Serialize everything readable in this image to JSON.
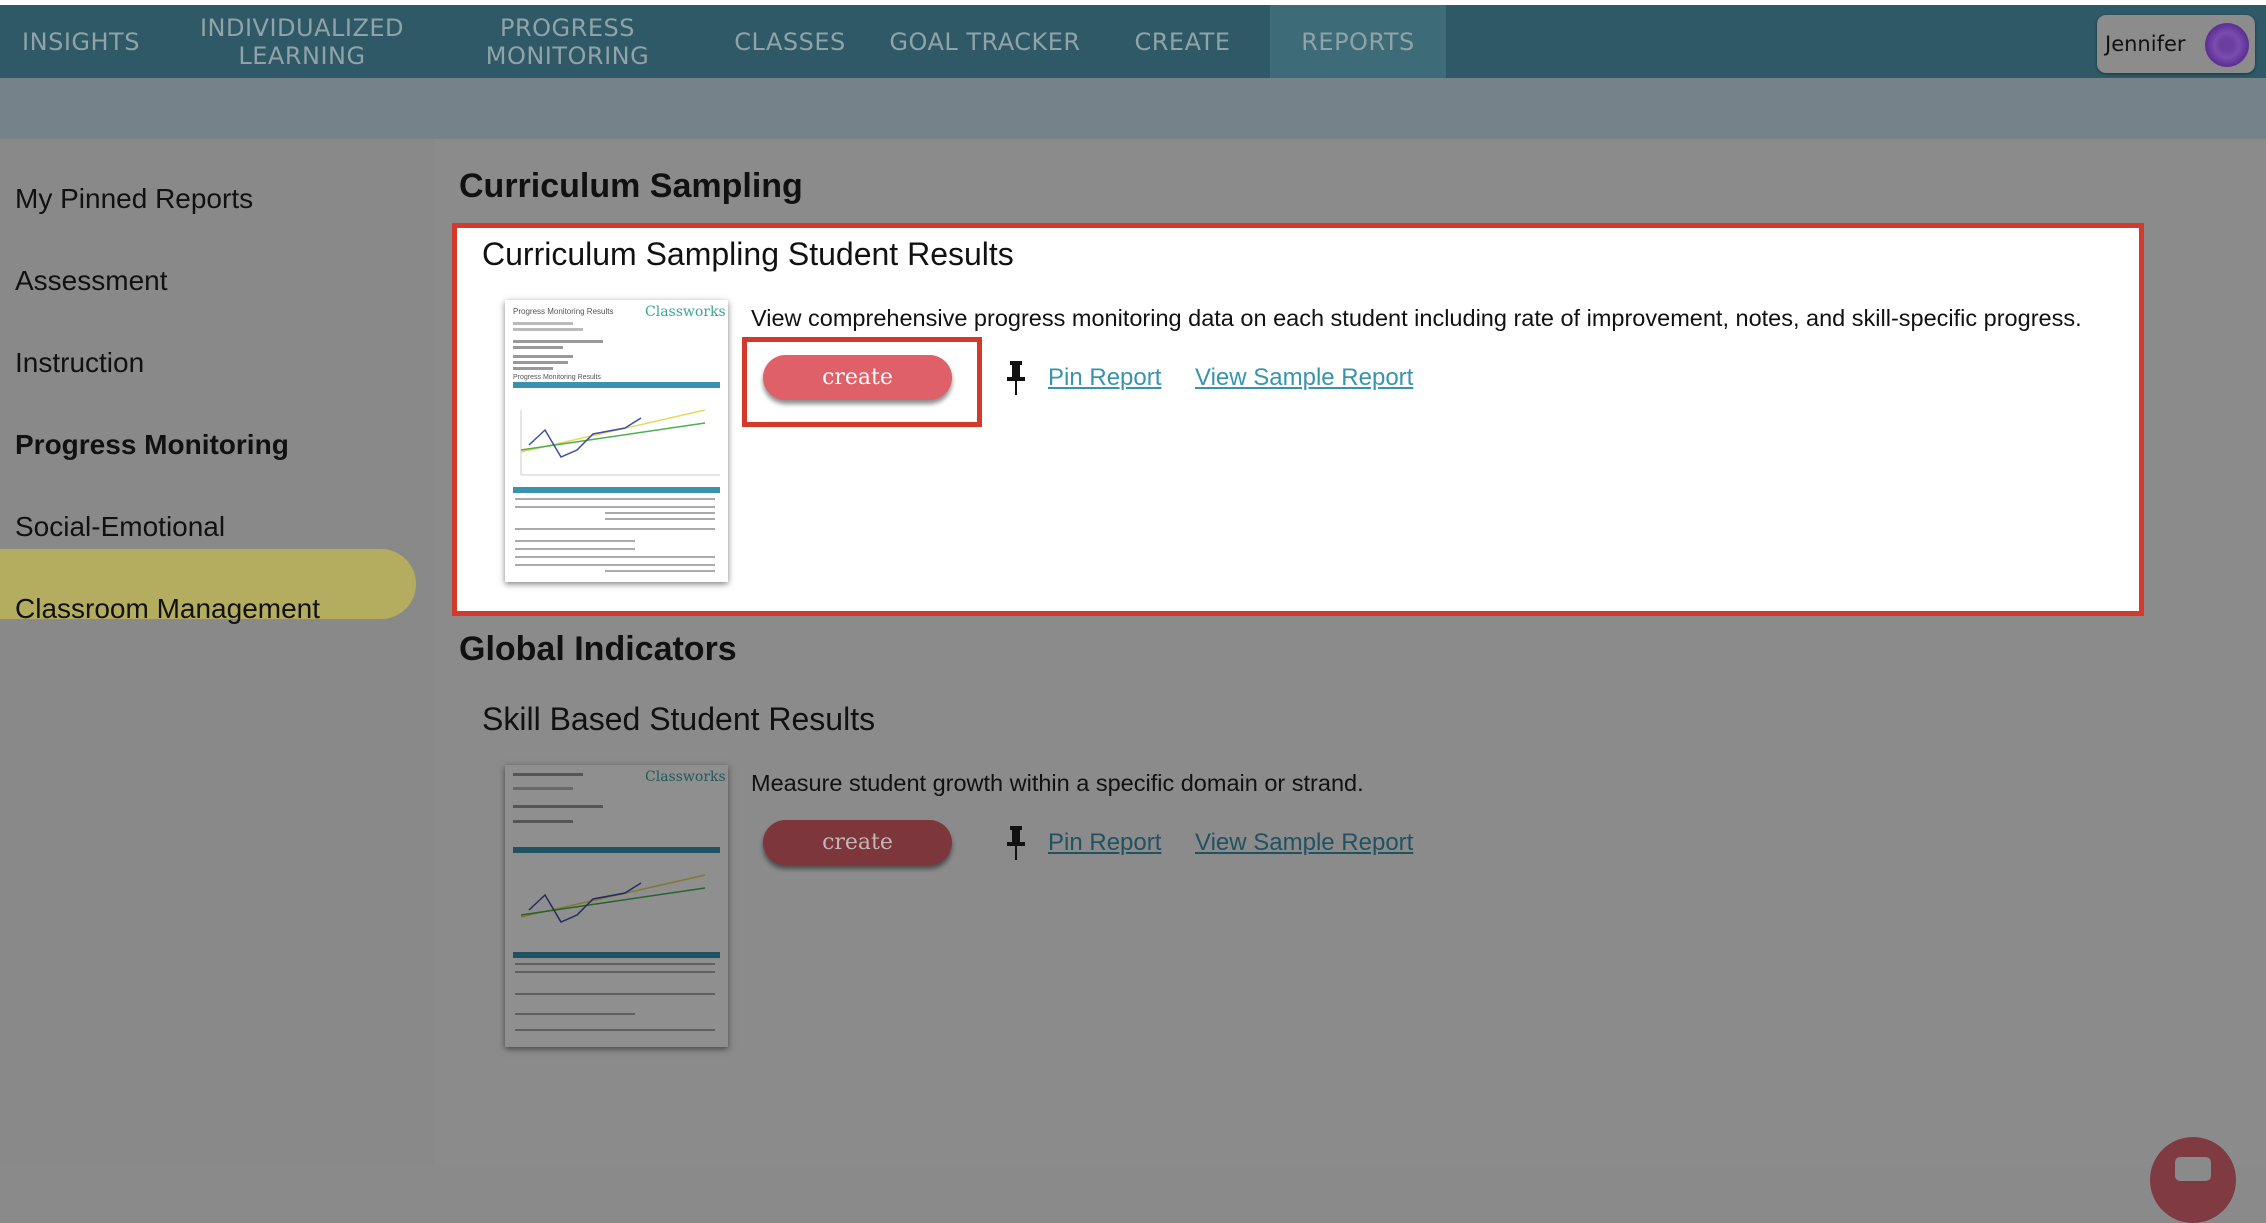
{
  "nav": {
    "items": [
      "INSIGHTS",
      "INDIVIDUALIZED LEARNING",
      "PROGRESS MONITORING",
      "CLASSES",
      "GOAL TRACKER",
      "CREATE",
      "REPORTS"
    ],
    "active": "REPORTS",
    "user": "Jennifer"
  },
  "sidebar": {
    "items": [
      "My Pinned Reports",
      "Assessment",
      "Instruction",
      "Progress Monitoring",
      "Social-Emotional",
      "Classroom Management"
    ],
    "active": "Progress Monitoring"
  },
  "sections": [
    {
      "heading": "Curriculum Sampling",
      "report": {
        "title": "Curriculum Sampling Student Results",
        "description": "View comprehensive progress monitoring data on each student including rate of improvement, notes, and skill-specific progress.",
        "create_label": "create",
        "pin_label": "Pin Report",
        "sample_label": "View Sample Report",
        "highlighted": true
      }
    },
    {
      "heading": "Global Indicators",
      "report": {
        "title": "Skill Based Student Results",
        "description": "Measure student growth within a specific domain or strand.",
        "create_label": "create",
        "pin_label": "Pin Report",
        "sample_label": "View Sample Report",
        "highlighted": false
      }
    }
  ],
  "thumbnail": {
    "title": "Progress Monitoring Results",
    "logo": "Classworks",
    "section": "Progress Monitoring Results"
  },
  "colors": {
    "nav": "#2f5966",
    "active_tab": "#3d6b78",
    "highlight_border": "#d33a2b",
    "create_button": "#e0606a",
    "link": "#3a93ae",
    "sidebar_active": "#b4ac5f"
  }
}
